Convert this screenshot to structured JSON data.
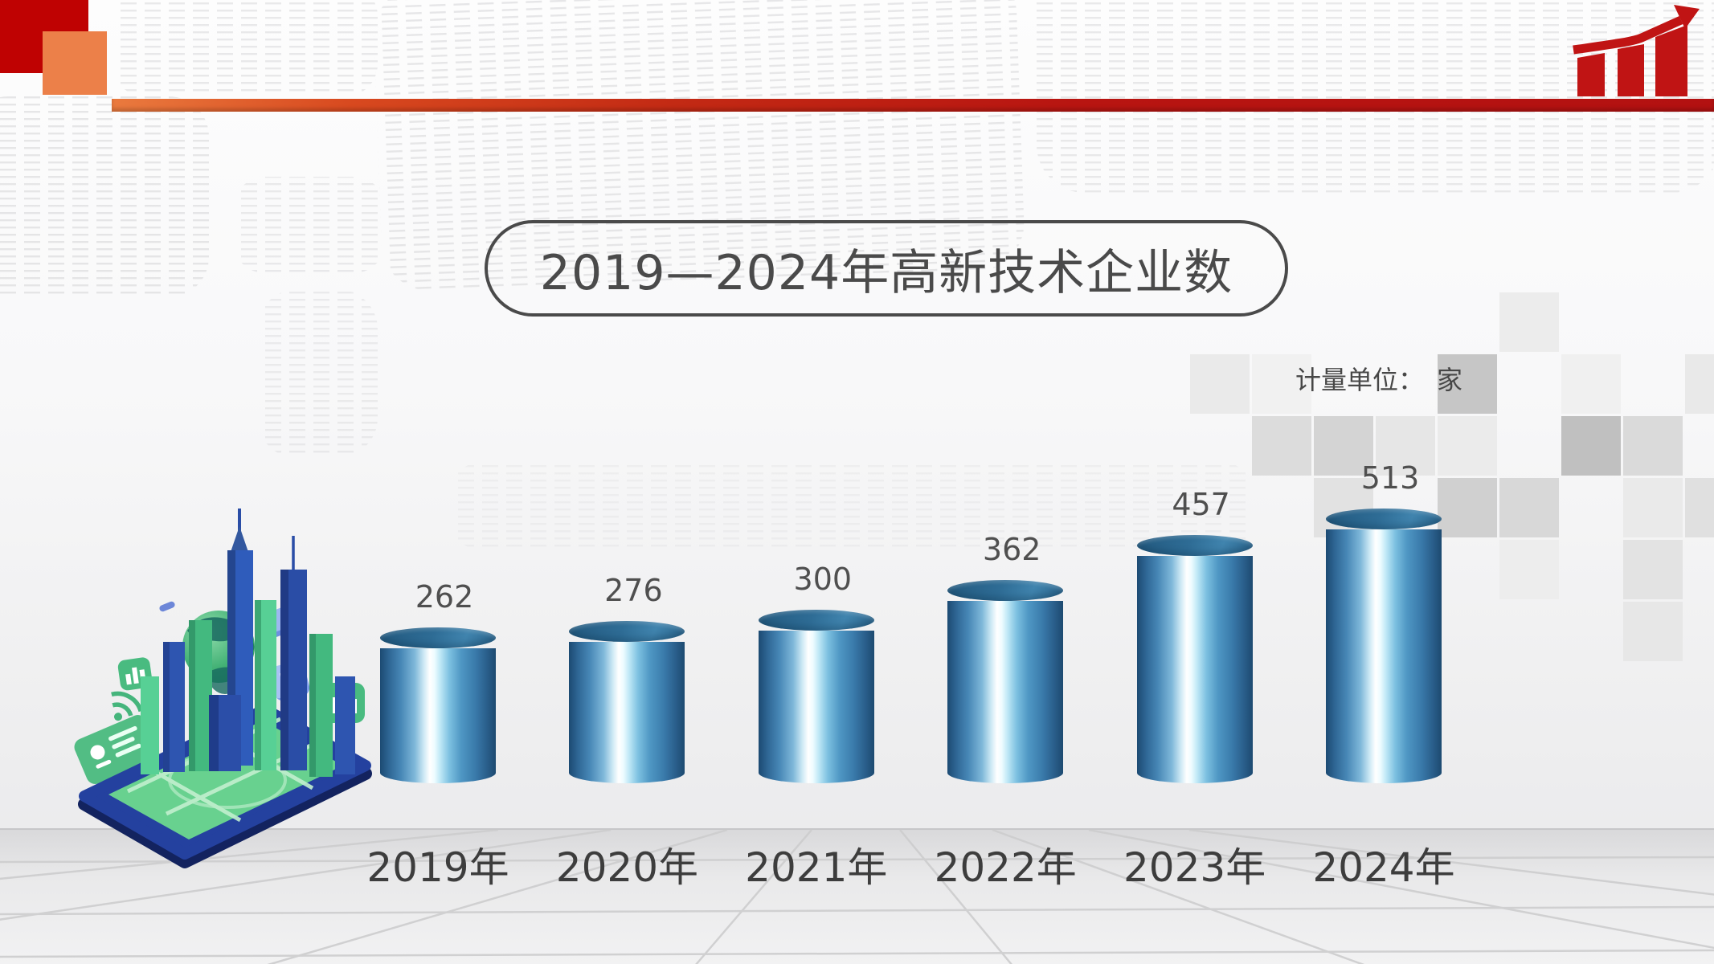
{
  "title": {
    "text": "2019—2024年高新技术企业数"
  },
  "unit": {
    "label": "计量单位：",
    "value": "家"
  },
  "chart_data": {
    "type": "bar",
    "bar_style": "3d-cylinder",
    "categories": [
      "2019年",
      "2020年",
      "2021年",
      "2022年",
      "2023年",
      "2024年"
    ],
    "values": [
      262,
      276,
      300,
      362,
      457,
      513
    ],
    "title": "2019—2024年高新技术企业数",
    "xlabel": "",
    "ylabel": "",
    "unit": "家",
    "ylim": [
      0,
      550
    ],
    "grid": false,
    "legend": "none",
    "value_labels_shown": true,
    "bar_color_hint": "blue cylinder with white specular highlight",
    "cylinder_top_color": "#2e6b94",
    "value_label_color": "#4f4f4f",
    "axis_label_color": "#3d3d3d"
  },
  "decor": {
    "growth_icon": "red rising bar chart with arrow",
    "city_illustration": "isometric smart-city on tablet with globe",
    "accent_red": "#bf0202",
    "accent_orange": "#ec8049",
    "rule_gradient": [
      "#ea7a3e",
      "#b31111"
    ],
    "title_border_color": "#4a4a4a"
  }
}
